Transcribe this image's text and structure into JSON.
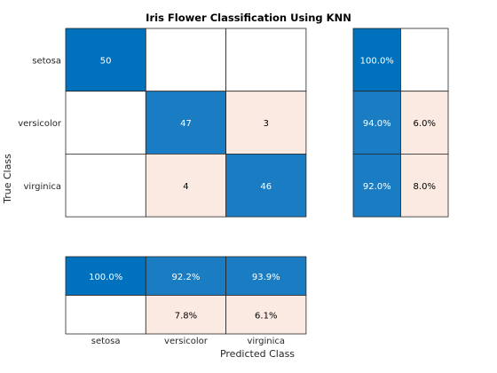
{
  "chart_data": {
    "type": "heatmap",
    "title": "Iris Flower Classification Using KNN",
    "xlabel": "Predicted Class",
    "ylabel": "True Class",
    "classes": [
      "setosa",
      "versicolor",
      "virginica"
    ],
    "confusion_matrix": [
      [
        50,
        null,
        null
      ],
      [
        null,
        47,
        3
      ],
      [
        null,
        4,
        46
      ]
    ],
    "row_summary": {
      "values": [
        [
          "100.0%",
          ""
        ],
        [
          "94.0%",
          "6.0%"
        ],
        [
          "92.0%",
          "8.0%"
        ]
      ]
    },
    "column_summary": {
      "values": [
        [
          "100.0%",
          "92.2%",
          "93.9%"
        ],
        [
          "",
          "7.8%",
          "6.1%"
        ]
      ]
    },
    "colors": {
      "correct_strong": "#0072BD",
      "correct": "#1A7DC4",
      "incorrect": "#FBEAE2",
      "empty": "#FFFFFF",
      "grid": "#262626",
      "text_on_dark": "#FFFFFF",
      "text_on_light": "#000000"
    }
  }
}
